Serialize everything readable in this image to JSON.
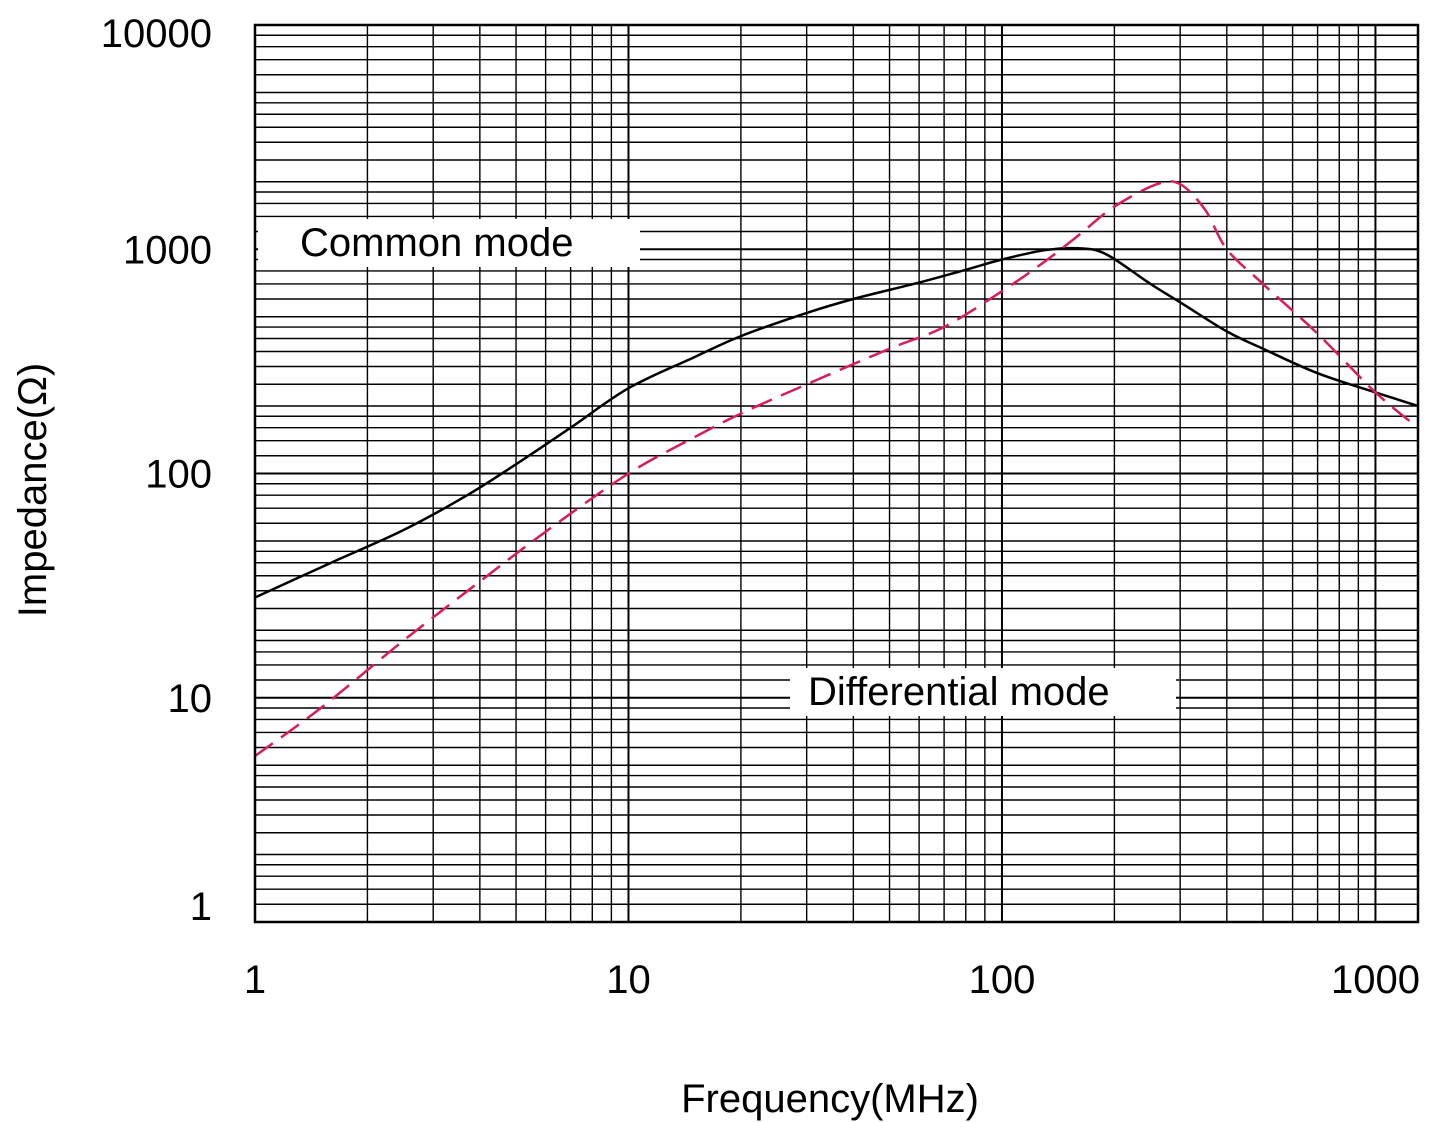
{
  "chart_data": {
    "type": "line",
    "xlabel": "Frequency(MHz)",
    "ylabel": "Impedance(Ω)",
    "x_scale": "log",
    "y_scale": "log",
    "xlim": [
      1,
      1300
    ],
    "ylim": [
      1,
      10000
    ],
    "grid": true,
    "x_ticks": [
      "1",
      "10",
      "100",
      "1000"
    ],
    "x_tick_values": [
      1,
      10,
      100,
      1000
    ],
    "y_ticks": [
      "1",
      "10",
      "100",
      "1000",
      "10000"
    ],
    "y_tick_values": [
      1,
      10,
      100,
      1000,
      10000
    ],
    "annotations": [
      {
        "text": "Common mode",
        "series": 0
      },
      {
        "text": "Differential mode",
        "series": 1
      }
    ],
    "series": [
      {
        "name": "Common mode",
        "color": "#000000",
        "line_style": "solid",
        "x": [
          1,
          1.6,
          2.5,
          3.7,
          5,
          7,
          10,
          15,
          20,
          30,
          40,
          60,
          80,
          100,
          130,
          160,
          190,
          250,
          300,
          400,
          500,
          700,
          1000,
          1300
        ],
        "y": [
          28,
          40,
          56,
          80,
          110,
          160,
          240,
          330,
          410,
          520,
          600,
          710,
          810,
          900,
          990,
          1010,
          950,
          700,
          580,
          430,
          360,
          280,
          230,
          200
        ]
      },
      {
        "name": "Differential mode",
        "color": "#d81b60",
        "line_style": "dashed",
        "x": [
          1,
          1.5,
          2.5,
          4,
          6,
          10,
          15,
          20,
          30,
          50,
          70,
          100,
          130,
          160,
          200,
          260,
          300,
          350,
          400,
          500,
          700,
          1000,
          1300
        ],
        "y": [
          5.5,
          9,
          18,
          33,
          55,
          100,
          145,
          185,
          250,
          360,
          450,
          650,
          880,
          1150,
          1550,
          1950,
          1950,
          1500,
          1000,
          700,
          420,
          230,
          160
        ]
      }
    ]
  }
}
